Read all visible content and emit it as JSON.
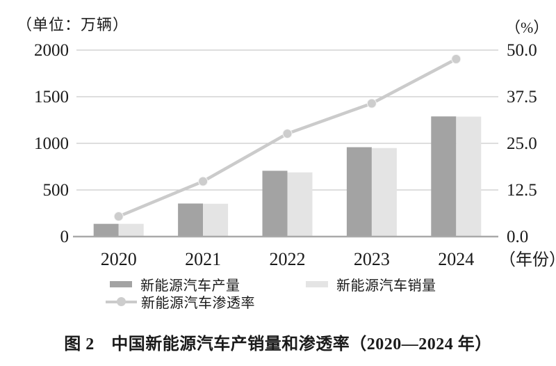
{
  "figure": {
    "left_axis_unit": "（单位：万辆）",
    "right_axis_unit": "（%）",
    "x_axis_suffix": "（年份）",
    "caption": "图 2　中国新能源汽车产销量和渗透率（2020—2024 年）"
  },
  "legend": {
    "production": "新能源汽车产量",
    "sales": "新能源汽车销量",
    "penetration": "新能源汽车渗透率"
  },
  "colors": {
    "production_bar": "#a3a3a3",
    "sales_bar": "#e4e4e4",
    "penetration_line": "#cbcbcb",
    "marker_fill": "#cdcdcd",
    "gridline": "#c9c9c9",
    "axis_line": "#a9a9a9",
    "text": "#1a1a1a"
  },
  "chart_data": {
    "type": "bar",
    "subtype": "dual-axis-bar-line-combo",
    "title": "图 2　中国新能源汽车产销量和渗透率（2020—2024 年）",
    "categories": [
      "2020",
      "2021",
      "2022",
      "2023",
      "2024"
    ],
    "series": [
      {
        "name": "新能源汽车产量",
        "kind": "bar",
        "axis": "left",
        "values": [
          136.6,
          354.5,
          705.8,
          958.7,
          1288.8
        ]
      },
      {
        "name": "新能源汽车销量",
        "kind": "bar",
        "axis": "left",
        "values": [
          136.7,
          352.1,
          688.7,
          949.5,
          1286.6
        ]
      },
      {
        "name": "新能源汽车渗透率",
        "kind": "line",
        "axis": "right",
        "values": [
          5.4,
          14.8,
          27.6,
          35.7,
          47.6
        ]
      }
    ],
    "xlabel": "（年份）",
    "left_axis": {
      "unit": "（单位：万辆）",
      "min": 0,
      "max": 2000,
      "ticks": [
        2000,
        1500,
        1000,
        500,
        0
      ],
      "tick_labels": [
        "2000",
        "1500",
        "1000",
        "500",
        "0"
      ]
    },
    "right_axis": {
      "unit": "（%）",
      "min": 0,
      "max": 50,
      "ticks": [
        50.0,
        37.5,
        25.0,
        12.5,
        0.0
      ],
      "tick_labels": [
        "50.0",
        "37.5",
        "25.0",
        "12.5",
        "0.0"
      ]
    },
    "grid": true,
    "legend_position": "bottom"
  }
}
